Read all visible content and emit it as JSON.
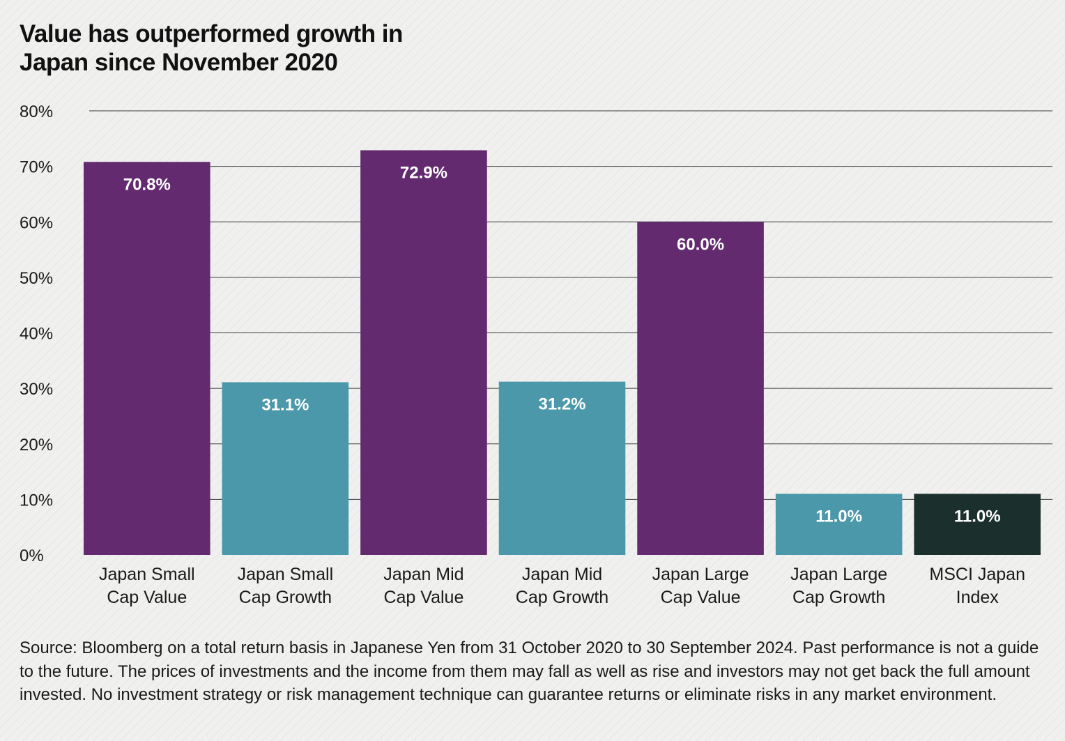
{
  "title_lines": [
    "Value has outperformed growth in",
    "Japan since November 2020"
  ],
  "source_note": "Source: Bloomberg on a total return basis in Japanese Yen from 31 October 2020 to 30 September 2024. Past performance is not a guide to the future. The prices of investments and the income from them may fall as well as rise and investors may not get back the full amount invested. No investment strategy or risk management technique can guarantee returns or eliminate risks in any market environment.",
  "colors": {
    "value": "#632a70",
    "growth": "#4a98a9",
    "index": "#1b302d",
    "gridline": "#3a3a3a",
    "bar_label": "#ffffff"
  },
  "chart_data": {
    "type": "bar",
    "title": "Value has outperformed growth in Japan since November 2020",
    "xlabel": "",
    "ylabel": "",
    "ylim": [
      0,
      80
    ],
    "yticks": [
      0,
      10,
      20,
      30,
      40,
      50,
      60,
      70,
      80
    ],
    "ytick_labels": [
      "0%",
      "10%",
      "20%",
      "30%",
      "40%",
      "50%",
      "60%",
      "70%",
      "80%"
    ],
    "grid": true,
    "legend": "none",
    "categories": [
      [
        "Japan Small",
        "Cap Value"
      ],
      [
        "Japan Small",
        "Cap Growth"
      ],
      [
        "Japan Mid",
        "Cap Value"
      ],
      [
        "Japan Mid",
        "Cap Growth"
      ],
      [
        "Japan Large",
        "Cap Value"
      ],
      [
        "Japan Large",
        "Cap Growth"
      ],
      [
        "MSCI Japan",
        "Index"
      ]
    ],
    "values": [
      70.8,
      31.1,
      72.9,
      31.2,
      60.0,
      11.0,
      11.0
    ],
    "value_labels": [
      "70.8%",
      "31.1%",
      "72.9%",
      "31.2%",
      "60.0%",
      "11.0%",
      "11.0%"
    ],
    "bar_styles": [
      "value",
      "growth",
      "value",
      "growth",
      "value",
      "growth",
      "index"
    ]
  }
}
